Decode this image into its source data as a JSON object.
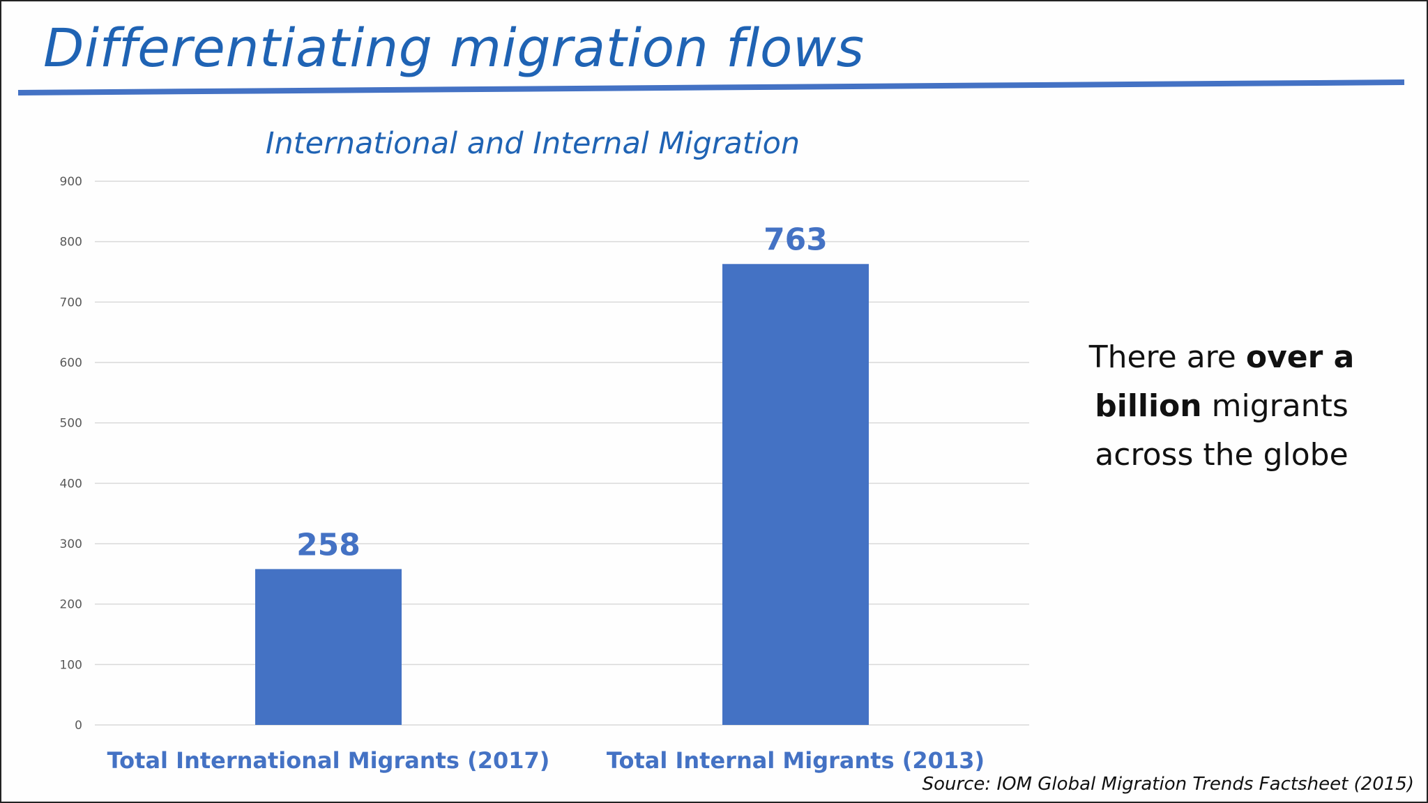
{
  "slide": {
    "title": "Differentiating migration flows",
    "callout": {
      "pre": "There are ",
      "bold": "over a billion",
      "post": " migrants across the globe"
    },
    "source": "Source: IOM Global Migration Trends Factsheet (2015)"
  },
  "colors": {
    "title": "#1f63b4",
    "bar": "#4472c4",
    "label": "#4472c4",
    "rule": "#4472c4",
    "grid": "#d9d9d9",
    "tick": "#595959"
  },
  "chart_data": {
    "type": "bar",
    "title": "International and Internal Migration",
    "categories": [
      "Total International Migrants (2017)",
      "Total Internal Migrants (2013)"
    ],
    "values": [
      258,
      763
    ],
    "data_labels": [
      "258",
      "763"
    ],
    "yticks": [
      0,
      100,
      200,
      300,
      400,
      500,
      600,
      700,
      800,
      900
    ],
    "ylim": [
      0,
      900
    ],
    "xlabel": "",
    "ylabel": "",
    "grid": true,
    "legend": "none"
  }
}
